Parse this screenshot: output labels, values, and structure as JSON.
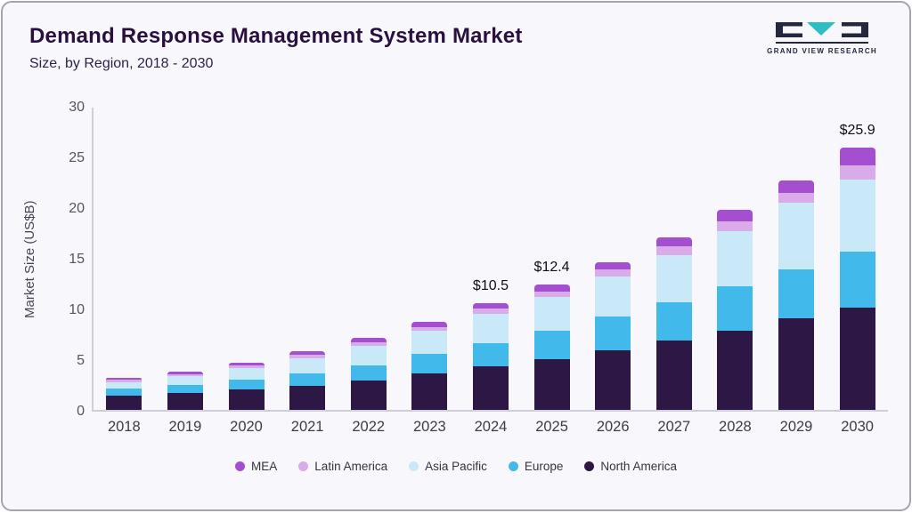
{
  "header": {
    "title": "Demand Response Management System Market",
    "subtitle": "Size, by Region, 2018 - 2030",
    "logo_text": "GRAND VIEW RESEARCH"
  },
  "chart_data": {
    "type": "bar",
    "stacked": true,
    "title": "Demand Response Management System Market Size, by Region, 2018 - 2030",
    "xlabel": "",
    "ylabel": "Market Size (US$B)",
    "ylim": [
      0,
      30
    ],
    "yticks": [
      0,
      5,
      10,
      15,
      20,
      25,
      30
    ],
    "grid": false,
    "legend_position": "bottom",
    "categories": [
      "2018",
      "2019",
      "2020",
      "2021",
      "2022",
      "2023",
      "2024",
      "2025",
      "2026",
      "2027",
      "2028",
      "2029",
      "2030"
    ],
    "series": [
      {
        "name": "North America",
        "color": "#2d1745",
        "values": [
          1.4,
          1.7,
          2.0,
          2.4,
          2.9,
          3.6,
          4.3,
          5.0,
          5.9,
          6.8,
          7.8,
          9.0,
          10.1
        ]
      },
      {
        "name": "Europe",
        "color": "#41b9ea",
        "values": [
          0.7,
          0.8,
          1.0,
          1.2,
          1.5,
          1.9,
          2.3,
          2.8,
          3.3,
          3.8,
          4.4,
          4.9,
          5.5
        ]
      },
      {
        "name": "Asia Pacific",
        "color": "#c9e9f9",
        "values": [
          0.6,
          0.8,
          1.1,
          1.5,
          1.9,
          2.3,
          2.9,
          3.3,
          4.0,
          4.7,
          5.4,
          6.5,
          7.1
        ]
      },
      {
        "name": "Latin America",
        "color": "#d9abe9",
        "values": [
          0.25,
          0.25,
          0.25,
          0.3,
          0.35,
          0.4,
          0.5,
          0.6,
          0.7,
          0.8,
          1.0,
          1.0,
          1.4
        ]
      },
      {
        "name": "MEA",
        "color": "#a44fd0",
        "values": [
          0.25,
          0.25,
          0.3,
          0.4,
          0.45,
          0.5,
          0.5,
          0.7,
          0.7,
          0.9,
          1.1,
          1.2,
          1.8
        ]
      }
    ],
    "annotations": {
      "2024": "$10.5",
      "2025": "$12.4",
      "2030": "$25.9"
    },
    "legend_order": [
      "MEA",
      "Latin America",
      "Asia Pacific",
      "Europe",
      "North America"
    ]
  }
}
